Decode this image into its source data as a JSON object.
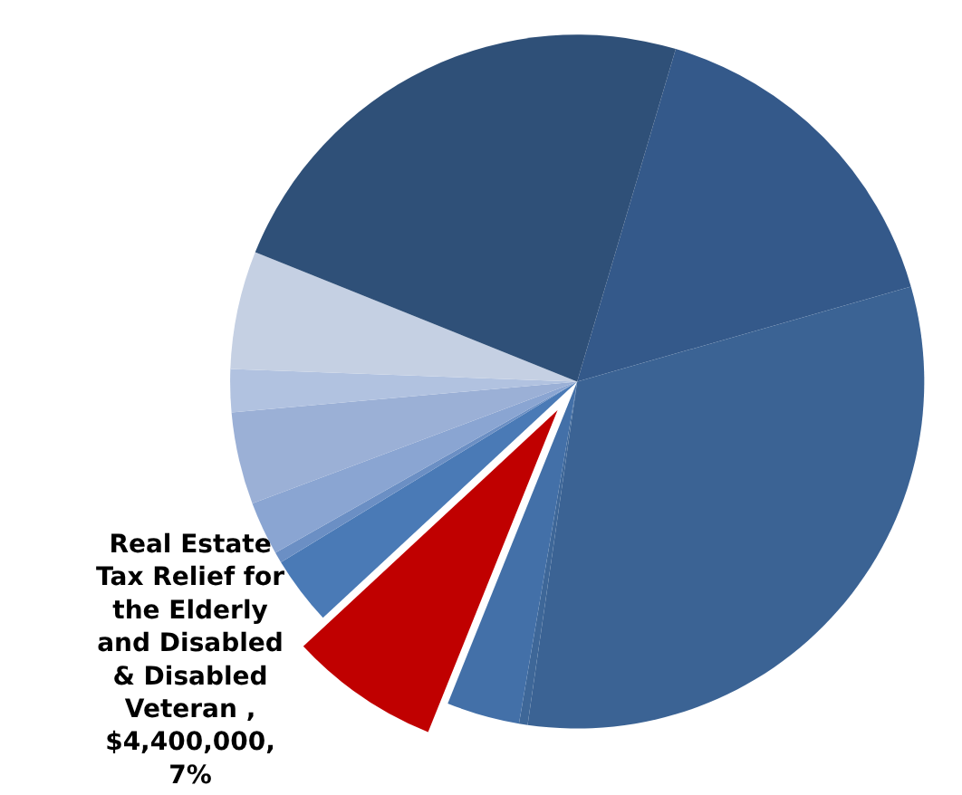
{
  "chart_data": {
    "type": "pie",
    "categories": [
      null,
      null,
      null,
      null,
      "Real Estate Tax Relief for the Elderly and Disabled & Disabled Veteran",
      null,
      null,
      null,
      null,
      null,
      null,
      null
    ],
    "values": [
      16.0,
      31.7,
      0.4,
      3.4,
      7,
      3.2,
      0.5,
      2.5,
      4.3,
      2.0,
      5.5,
      23.5
    ],
    "value_labels": [
      null,
      null,
      null,
      null,
      ", $4,400,000, 7%",
      null,
      null,
      null,
      null,
      null,
      null,
      null
    ],
    "colors": [
      "#34598a",
      "#3b6394",
      "#3e6798",
      "#4370a8",
      "#c00000",
      "#4a7ab6",
      "#6b8fc4",
      "#8aa5d2",
      "#9bb0d6",
      "#b1c2e0",
      "#c5d0e3",
      "#2f5078"
    ]
  }
}
